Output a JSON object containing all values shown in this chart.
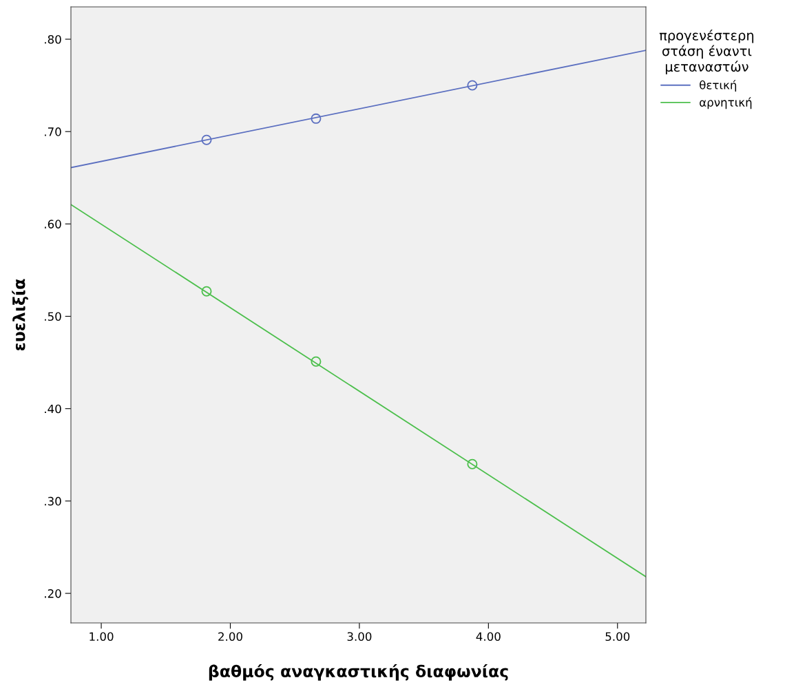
{
  "chart_data": {
    "type": "line",
    "xlabel": "βαθμός αναγκαστικής διαφωνίας",
    "ylabel": "ευελιξία",
    "legend_title": "προγενέστερη\nστάση έναντι\nμεταναστών",
    "xlim": [
      0.765,
      5.22
    ],
    "ylim": [
      0.168,
      0.835
    ],
    "xticks": [
      {
        "value": 1,
        "label": "1.00"
      },
      {
        "value": 2,
        "label": "2.00"
      },
      {
        "value": 3,
        "label": "3.00"
      },
      {
        "value": 4,
        "label": "4.00"
      },
      {
        "value": 5,
        "label": "5.00"
      }
    ],
    "yticks": [
      {
        "value": 0.2,
        "label": ".20"
      },
      {
        "value": 0.3,
        "label": ".30"
      },
      {
        "value": 0.4,
        "label": ".40"
      },
      {
        "value": 0.5,
        "label": ".50"
      },
      {
        "value": 0.6,
        "label": ".60"
      },
      {
        "value": 0.7,
        "label": ".70"
      },
      {
        "value": 0.8,
        "label": ".80"
      }
    ],
    "grid": false,
    "legend": "right",
    "series": [
      {
        "name": "θετική",
        "type": "line",
        "color": "#5b6fc0",
        "x": [
          0.765,
          5.22
        ],
        "values": [
          0.661,
          0.788
        ]
      },
      {
        "name": "αρνητική",
        "type": "line",
        "color": "#4cbf4c",
        "x": [
          0.765,
          5.22
        ],
        "values": [
          0.621,
          0.218
        ]
      },
      {
        "type": "scatter",
        "marker": "circle",
        "color": "#5b6fc0",
        "x": [
          1.816,
          2.664,
          3.875
        ],
        "values": [
          0.691,
          0.714,
          0.75
        ]
      },
      {
        "type": "scatter",
        "marker": "circle",
        "color": "#4cbf4c",
        "x": [
          1.816,
          2.664,
          3.875
        ],
        "values": [
          0.527,
          0.451,
          0.34
        ]
      }
    ]
  }
}
